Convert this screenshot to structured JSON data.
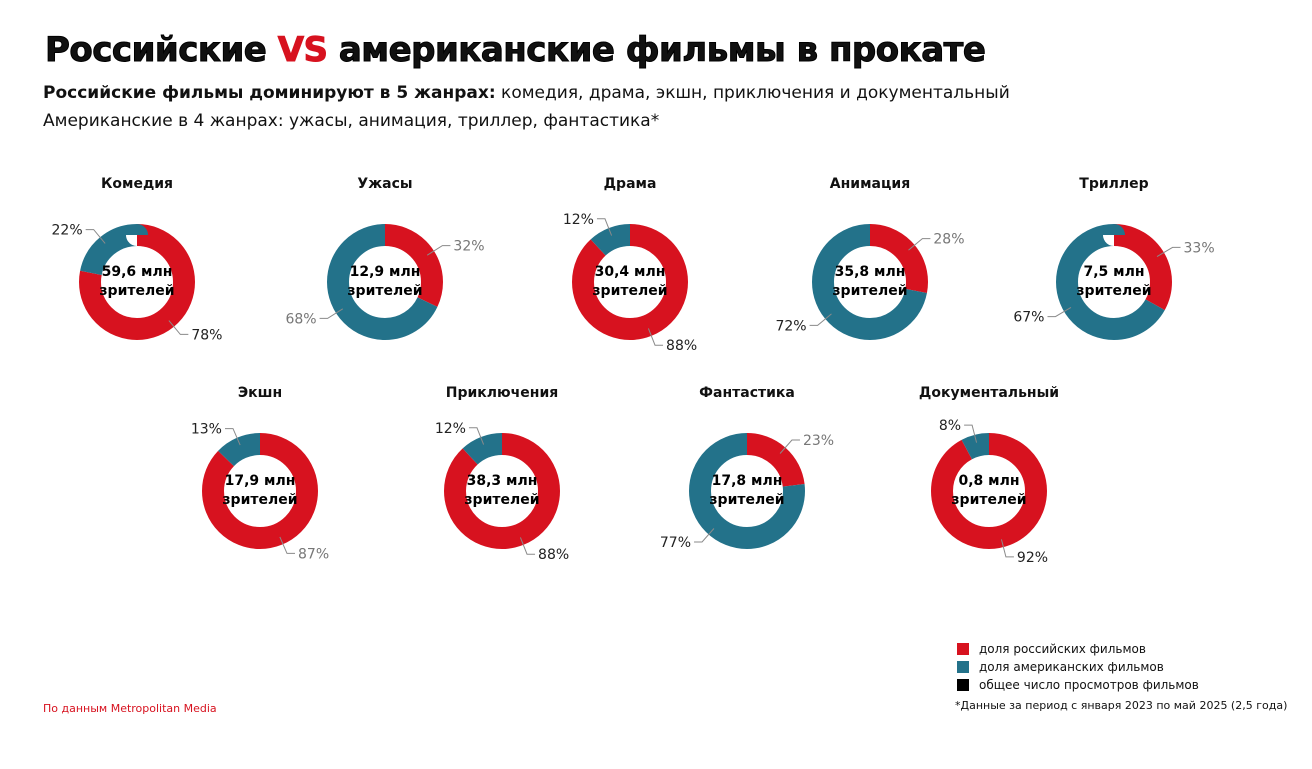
{
  "title": {
    "part1": "Российские ",
    "vs": "VS",
    "part2": " американские фильмы в прокате"
  },
  "subtitle": {
    "line1_bold": "Российские фильмы доминируют в 5 жанрах:",
    "line1_rest": " комедия, драма, экшн, приключения и документальный",
    "line2": "Американские в 4 жанрах: ужасы, анимация, триллер, фантастика*"
  },
  "colors": {
    "russian": "#d7121f",
    "american": "#23728a",
    "total": "#000000"
  },
  "legend": [
    {
      "label": "доля российских фильмов",
      "color": "#d7121f"
    },
    {
      "label": "доля американских фильмов",
      "color": "#23728a"
    },
    {
      "label": "общее число просмотров фильмов",
      "color": "#000000"
    }
  ],
  "source": "По данным Metropolitan Media",
  "footnote": "*Данные за период с января 2023 по май 2025 (2,5 года)",
  "chart_data": [
    {
      "type": "pie",
      "title": "Комедия",
      "total": "59,6 млн",
      "total_unit": "зрителей",
      "series": [
        {
          "name": "доля российских фильмов",
          "value": 78,
          "label": "78%"
        },
        {
          "name": "доля американских фильмов",
          "value": 22,
          "label": "22%"
        }
      ]
    },
    {
      "type": "pie",
      "title": "Ужасы",
      "total": "12,9 млн",
      "total_unit": "зрителей",
      "series": [
        {
          "name": "доля российских фильмов",
          "value": 32,
          "label": "32%"
        },
        {
          "name": "доля американских фильмов",
          "value": 68,
          "label": "68%"
        }
      ]
    },
    {
      "type": "pie",
      "title": "Драма",
      "total": "30,4 млн",
      "total_unit": "зрителей",
      "series": [
        {
          "name": "доля российских фильмов",
          "value": 88,
          "label": "88%"
        },
        {
          "name": "доля американских фильмов",
          "value": 12,
          "label": "12%"
        }
      ]
    },
    {
      "type": "pie",
      "title": "Анимация",
      "total": "35,8 млн",
      "total_unit": "зрителей",
      "series": [
        {
          "name": "доля российских фильмов",
          "value": 28,
          "label": "28%"
        },
        {
          "name": "доля американских фильмов",
          "value": 72,
          "label": "72%"
        }
      ]
    },
    {
      "type": "pie",
      "title": "Триллер",
      "total": "7,5 млн",
      "total_unit": "зрителей",
      "series": [
        {
          "name": "доля российских фильмов",
          "value": 33,
          "label": "33%"
        },
        {
          "name": "доля американских фильмов",
          "value": 67,
          "label": "67%"
        }
      ]
    },
    {
      "type": "pie",
      "title": "Экшн",
      "total": "17,9 млн",
      "total_unit": "зрителей",
      "series": [
        {
          "name": "доля российских фильмов",
          "value": 87,
          "label": "87%"
        },
        {
          "name": "доля американских фильмов",
          "value": 13,
          "label": "13%"
        }
      ]
    },
    {
      "type": "pie",
      "title": "Приключения",
      "total": "38,3 млн",
      "total_unit": "зрителей",
      "series": [
        {
          "name": "доля российских фильмов",
          "value": 88,
          "label": "88%"
        },
        {
          "name": "доля американских фильмов",
          "value": 12,
          "label": "12%"
        }
      ]
    },
    {
      "type": "pie",
      "title": "Фантастика",
      "total": "17,8 млн",
      "total_unit": "зрителей",
      "series": [
        {
          "name": "доля российских фильмов",
          "value": 23,
          "label": "23%"
        },
        {
          "name": "доля американских фильмов",
          "value": 77,
          "label": "77%"
        }
      ]
    },
    {
      "type": "pie",
      "title": "Документальный",
      "total": "0,8 млн",
      "total_unit": "зрителей",
      "series": [
        {
          "name": "доля российских фильмов",
          "value": 92,
          "label": "92%"
        },
        {
          "name": "доля американских фильмов",
          "value": 8,
          "label": "8%"
        }
      ]
    }
  ]
}
